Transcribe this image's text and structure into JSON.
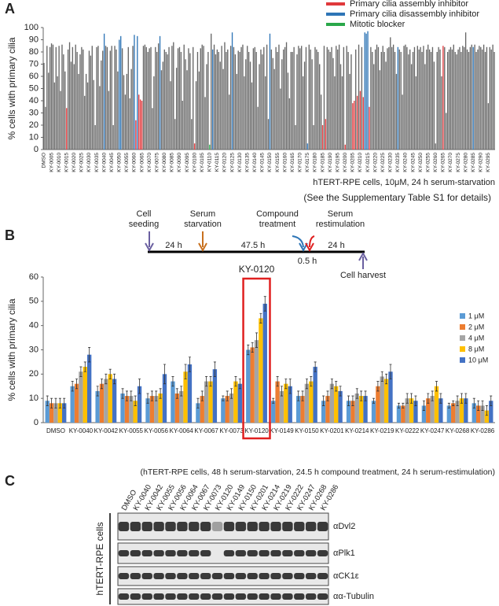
{
  "panels": {
    "a": "A",
    "b": "B",
    "c": "C"
  },
  "chart_data": [
    {
      "type": "bar",
      "ylabel": "% cells with primary cilia",
      "xlabel": "hTERT-RPE cells, 10μM, 24 h serum-starvation",
      "note": "(See the Supplementary Table S1 for details)",
      "legend": [
        {
          "name": "Primary cilia assembly inhibitor",
          "color": "#e0383b"
        },
        {
          "name": "Primary cilia disassembly inhibitor",
          "color": "#2e75b6"
        },
        {
          "name": "Mitotic blocker",
          "color": "#2aa84a"
        }
      ],
      "ylim": [
        0,
        100
      ],
      "yticks": [
        0,
        10,
        20,
        30,
        40,
        50,
        60,
        70,
        80,
        90,
        100
      ],
      "categories": [
        "DMSO",
        null,
        null,
        null,
        null,
        "KY-0005",
        null,
        null,
        null,
        null,
        "KY-0010",
        null,
        null,
        null,
        null,
        "KY-0015",
        null,
        null,
        null,
        null,
        "KY-0020",
        null,
        null,
        null,
        null,
        "KY-0025",
        null,
        null,
        null,
        null,
        "KY-0030",
        null,
        null,
        null,
        null,
        "KY-0035",
        null,
        null,
        null,
        null,
        "KY-0040",
        null,
        null,
        null,
        null,
        "KY-0045",
        null,
        null,
        null,
        null,
        "KY-0050",
        null,
        null,
        null,
        null,
        "KY-0055",
        null,
        null,
        null,
        null,
        "KY-0060",
        null,
        null,
        null,
        null,
        "KY-0065",
        null,
        null,
        null,
        null,
        "KY-0070",
        null,
        null,
        null,
        null,
        "KY-0075",
        null,
        null,
        null,
        null,
        "KY-0080",
        null,
        null,
        null,
        null,
        "KY-0085",
        null,
        null,
        null,
        null,
        "KY-0090",
        null,
        null,
        null,
        null,
        "KY-0095",
        null,
        null,
        null,
        null,
        "KY-0100",
        null,
        null,
        null,
        null,
        "KY-0105",
        null,
        null,
        null,
        null,
        "KY-0110",
        null,
        null,
        null,
        null,
        "KY-0115",
        null,
        null,
        null,
        null,
        "KY-0120",
        null,
        null,
        null,
        null,
        "KY-0125",
        null,
        null,
        null,
        null,
        "KY-0130",
        null,
        null,
        null,
        null,
        "KY-0135",
        null,
        null,
        null,
        null,
        "KY-0140",
        null,
        null,
        null,
        null,
        "KY-0145",
        null,
        null,
        null,
        null,
        "KY-0150",
        null,
        null,
        null,
        null,
        "KY-0155",
        null,
        null,
        null,
        null,
        "KY-0160",
        null,
        null,
        null,
        null,
        "KY-0165",
        null,
        null,
        null,
        null,
        "KY-0170",
        null,
        null,
        null,
        null,
        "KY-0175",
        null,
        null,
        null,
        null,
        "KY-0180",
        null,
        null,
        null,
        null,
        "KY-0185",
        null,
        null,
        null,
        null,
        "KY-0190",
        null,
        null,
        null,
        null,
        "KY-0195",
        null,
        null,
        null,
        null,
        "KY-0200",
        null,
        null,
        null,
        null,
        "KY-0205",
        null,
        null,
        null,
        null,
        "KY-0210",
        null,
        null,
        null,
        null,
        "KY-0215",
        null,
        null,
        null,
        null,
        "KY-0220",
        null,
        null,
        null,
        null,
        "KY-0225",
        null,
        null,
        null,
        null,
        "KY-0230",
        null,
        null,
        null,
        null,
        "KY-0235",
        null,
        null,
        null,
        null,
        "KY-0240",
        null,
        null,
        null,
        null,
        "KY-0245",
        null,
        null,
        null,
        null,
        "KY-0250",
        null,
        null,
        null,
        null,
        "KY-0255",
        null,
        null,
        null,
        null,
        "KY-0260",
        null,
        null,
        null,
        null,
        "KY-0265",
        null,
        null,
        null,
        null,
        "KY-0270",
        null,
        null,
        null,
        null,
        "KY-0275",
        null,
        null,
        null,
        null,
        "KY-0280",
        null,
        null,
        null,
        null,
        "KY-0285",
        null,
        null,
        null,
        null,
        "KY-0290",
        null,
        null,
        null,
        null,
        "KY-0295",
        null,
        null,
        null,
        null
      ],
      "values": [
        71,
        35,
        85,
        63,
        84,
        87,
        86,
        55,
        84,
        60,
        85,
        48,
        86,
        78,
        64,
        34,
        82,
        88,
        72,
        84,
        70,
        86,
        80,
        62,
        78,
        84,
        82,
        44,
        62,
        55,
        81,
        77,
        85,
        57,
        20,
        84,
        85,
        52,
        73,
        81,
        95,
        85,
        84,
        48,
        81,
        85,
        20,
        85,
        82,
        64,
        90,
        93,
        83,
        61,
        45,
        62,
        84,
        42,
        66,
        85,
        94,
        24,
        93,
        45,
        41,
        40,
        85,
        86,
        84,
        80,
        83,
        84,
        34,
        60,
        84,
        80,
        87,
        93,
        65,
        72,
        82,
        80,
        78,
        84,
        56,
        85,
        88,
        25,
        67,
        83,
        84,
        80,
        40,
        86,
        74,
        65,
        83,
        79,
        25,
        84,
        5,
        56,
        80,
        64,
        83,
        86,
        85,
        43,
        70,
        80,
        4,
        95,
        82,
        86,
        78,
        82,
        80,
        72,
        85,
        66,
        88,
        80,
        82,
        45,
        85,
        96,
        84,
        78,
        62,
        81,
        80,
        84,
        86,
        60,
        74,
        85,
        80,
        72,
        55,
        83,
        84,
        80,
        35,
        70,
        82,
        78,
        84,
        60,
        86,
        25,
        95,
        82,
        75,
        66,
        84,
        80,
        86,
        50,
        74,
        82,
        84,
        88,
        63,
        42,
        80,
        80,
        84,
        20,
        78,
        85,
        83,
        85,
        60,
        72,
        84,
        5,
        86,
        82,
        74,
        20,
        84,
        82,
        80,
        70,
        45,
        20,
        85,
        25,
        84,
        82,
        80,
        84,
        75,
        60,
        85,
        82,
        86,
        70,
        60,
        84,
        4,
        85,
        80,
        62,
        78,
        38,
        40,
        82,
        44,
        86,
        48,
        84,
        43,
        96,
        95,
        97,
        35,
        84,
        80,
        70,
        82,
        86,
        84,
        65,
        80,
        85,
        80,
        72,
        83,
        84,
        92,
        84,
        86,
        80,
        62,
        84,
        82,
        80,
        45,
        85,
        86,
        84,
        78,
        82,
        70,
        80,
        84,
        60,
        85,
        82,
        84,
        80,
        85,
        70,
        82,
        86,
        82,
        80,
        84,
        72,
        5,
        80,
        84,
        82,
        60,
        85,
        84,
        30,
        80,
        82,
        84,
        82,
        86,
        80,
        78,
        82,
        84,
        80,
        85,
        84,
        96,
        82,
        80,
        84,
        86,
        84,
        86,
        80,
        82,
        85,
        84,
        82,
        86,
        80,
        84,
        38,
        84,
        82,
        86,
        80
      ],
      "bar_colors": [
        "#666",
        "#666",
        "#666",
        "#666",
        "#666",
        "#666",
        "#666",
        "#666",
        "#666",
        "#666",
        "#666",
        "#666",
        "#666",
        "#666",
        "#666",
        "#e0383b",
        "#666",
        "#666",
        "#666",
        "#666",
        "#666",
        "#666",
        "#666",
        "#666",
        "#666",
        "#666",
        "#666",
        "#666",
        "#666",
        "#666",
        "#666",
        "#666",
        "#666",
        "#666",
        "#666",
        "#666",
        "#666",
        "#666",
        "#666",
        "#666",
        "#2e75b6",
        "#666",
        "#666",
        "#666",
        "#666",
        "#666",
        "#666",
        "#666",
        "#666",
        "#666",
        "#2e75b6",
        "#2e75b6",
        "#666",
        "#666",
        "#666",
        "#666",
        "#666",
        "#666",
        "#666",
        "#666",
        "#2e75b6",
        "#e0383b",
        "#2e75b6",
        "#e0383b",
        "#e0383b",
        "#e0383b",
        "#666",
        "#666",
        "#666",
        "#666",
        "#666",
        "#666",
        "#666",
        "#666",
        "#666",
        "#666",
        "#666",
        "#2e75b6",
        "#666",
        "#666",
        "#666",
        "#666",
        "#666",
        "#666",
        "#666",
        "#666",
        "#666",
        "#666",
        "#666",
        "#666",
        "#666",
        "#666",
        "#666",
        "#666",
        "#666",
        "#666",
        "#666",
        "#666",
        "#666",
        "#666",
        "#e0383b",
        "#666",
        "#666",
        "#666",
        "#666",
        "#666",
        "#666",
        "#666",
        "#666",
        "#666",
        "#2aa84a",
        "#666",
        "#2e75b6",
        "#666",
        "#666",
        "#666",
        "#666",
        "#666",
        "#666",
        "#666",
        "#666",
        "#666",
        "#666",
        "#666",
        "#666",
        "#2e75b6",
        "#666",
        "#666",
        "#666",
        "#666",
        "#666",
        "#666",
        "#666",
        "#666",
        "#666",
        "#666",
        "#666",
        "#666",
        "#666",
        "#666",
        "#666",
        "#666",
        "#666",
        "#666",
        "#666",
        "#666",
        "#666",
        "#666",
        "#666",
        "#666",
        "#2e75b6",
        "#666",
        "#666",
        "#666",
        "#666",
        "#666",
        "#666",
        "#666",
        "#666",
        "#666",
        "#666",
        "#666",
        "#666",
        "#666",
        "#666",
        "#666",
        "#666",
        "#666",
        "#666",
        "#666",
        "#666",
        "#666",
        "#666",
        "#666",
        "#666",
        "#2e75b6",
        "#666",
        "#666",
        "#666",
        "#666",
        "#666",
        "#666",
        "#666",
        "#666",
        "#666",
        "#e0383b",
        "#666",
        "#e0383b",
        "#666",
        "#666",
        "#666",
        "#666",
        "#666",
        "#666",
        "#666",
        "#666",
        "#666",
        "#666",
        "#666",
        "#666",
        "#e0383b",
        "#666",
        "#666",
        "#666",
        "#666",
        "#e0383b",
        "#e0383b",
        "#666",
        "#e0383b",
        "#666",
        "#e0383b",
        "#666",
        "#e0383b",
        "#2e75b6",
        "#2e75b6",
        "#2e75b6",
        "#e0383b",
        "#666",
        "#666",
        "#666",
        "#666",
        "#666",
        "#666",
        "#666",
        "#666",
        "#666",
        "#666",
        "#666",
        "#666",
        "#666",
        "#666",
        "#666",
        "#666",
        "#666",
        "#666",
        "#2e75b6",
        "#666",
        "#666",
        "#666",
        "#666",
        "#666",
        "#666",
        "#666",
        "#666",
        "#666",
        "#666",
        "#666",
        "#666",
        "#666",
        "#666",
        "#666",
        "#666",
        "#666",
        "#666",
        "#666",
        "#666",
        "#666",
        "#666",
        "#666",
        "#666",
        "#666",
        "#666",
        "#666",
        "#666",
        "#666",
        "#e0383b",
        "#666",
        "#666",
        "#666",
        "#666",
        "#666",
        "#666",
        "#666",
        "#666",
        "#666",
        "#666",
        "#666",
        "#666",
        "#666",
        "#666",
        "#666",
        "#666",
        "#666",
        "#666",
        "#666",
        "#2e75b6",
        "#666",
        "#666",
        "#666",
        "#666",
        "#666",
        "#666",
        "#666",
        "#666",
        "#666",
        "#666",
        "#666",
        "#666",
        "#666",
        "#666",
        "#e0383b",
        "#666",
        "#666",
        "#666",
        "#666"
      ]
    },
    {
      "type": "bar",
      "ylabel": "% cells with primary cilia",
      "footnote": "(hTERT-RPE cells, 48 h serum-starvation, 24.5 h compound treatment, 24 h serum-restimulation)",
      "annotation": "KY-0120",
      "annotation_color": "#2e75b6",
      "box_color": "#e02020",
      "ylim": [
        0,
        60
      ],
      "yticks": [
        0,
        10,
        20,
        30,
        40,
        50,
        60
      ],
      "categories": [
        "DMSO",
        "KY-0040",
        "KY-0042",
        "KY-0055",
        "KY-0056",
        "KY-0064",
        "KY-0067",
        "KY-0073",
        "KY-0120",
        "KY-0149",
        "KY-0150",
        "KY-0201",
        "KY-0214",
        "KY-0219",
        "KY-0222",
        "KY-0247",
        "KY-0268",
        "KY-0286"
      ],
      "series": [
        {
          "name": "1 μM",
          "color": "#5b9bd5",
          "values": [
            9,
            15,
            13,
            12,
            10,
            17,
            8,
            10,
            30,
            9,
            11,
            9,
            9,
            9,
            7,
            7,
            7,
            8
          ],
          "errors": [
            2,
            2,
            2,
            2,
            2,
            2,
            2,
            1,
            2,
            1,
            2,
            2,
            2,
            1,
            1,
            2,
            1,
            2
          ]
        },
        {
          "name": "2 μM",
          "color": "#ed7d31",
          "values": [
            8,
            16,
            16,
            11,
            11,
            12,
            11,
            11,
            31,
            17,
            11,
            11,
            9,
            15,
            7,
            10,
            8,
            7
          ],
          "errors": [
            2,
            2,
            2,
            2,
            2,
            2,
            2,
            2,
            2,
            2,
            2,
            2,
            2,
            2,
            1,
            2,
            1,
            2
          ]
        },
        {
          "name": "4 μM",
          "color": "#a5a5a5",
          "values": [
            8,
            21,
            18,
            11,
            11,
            13,
            17,
            12,
            34,
            13,
            16,
            16,
            12,
            19,
            10,
            11,
            9,
            7
          ],
          "errors": [
            2,
            2,
            2,
            2,
            2,
            2,
            2,
            2,
            3,
            2,
            2,
            2,
            2,
            2,
            2,
            2,
            2,
            2
          ]
        },
        {
          "name": "8 μM",
          "color": "#ffc000",
          "values": [
            8,
            23,
            20,
            9,
            12,
            21,
            17,
            17,
            43,
            16,
            17,
            15,
            11,
            18,
            10,
            15,
            10,
            5
          ],
          "errors": [
            2,
            2,
            2,
            2,
            2,
            3,
            2,
            2,
            2,
            2,
            2,
            2,
            2,
            2,
            2,
            2,
            2,
            2
          ]
        },
        {
          "name": "10 μM",
          "color": "#4472c4",
          "values": [
            8,
            28,
            18,
            15,
            20,
            24,
            22,
            16,
            49,
            15,
            23,
            13,
            11,
            21,
            9,
            10,
            10,
            9
          ],
          "errors": [
            2,
            3,
            2,
            3,
            4,
            3,
            3,
            2,
            3,
            3,
            2,
            2,
            2,
            3,
            2,
            2,
            2,
            2
          ]
        }
      ]
    }
  ],
  "timeline": {
    "events": [
      "Cell seeding",
      "Serum starvation",
      "Compound treatment",
      "Serum restimulation",
      "Cell harvest"
    ],
    "durations": [
      "24 h",
      "47.5 h",
      "0.5 h",
      "24 h"
    ]
  },
  "blot": {
    "cell_line": "hTERT-RPE cells",
    "lanes": [
      "DMSO",
      "KY-0040",
      "KY-0042",
      "KY-0055",
      "KY-0056",
      "KY-0064",
      "KY-0067",
      "KY-0073",
      "KY-0120",
      "KY-0149",
      "KY-0150",
      "KY-0201",
      "KY-0214",
      "KY-0219",
      "KY-0222",
      "KY-0247",
      "KY-0268",
      "KY-0286"
    ],
    "lane_colors": [
      "#111",
      "#111",
      "#111",
      "#111",
      "#111",
      "#111",
      "#111",
      "#111",
      "#2e75b6",
      "#111",
      "#111",
      "#111",
      "#111",
      "#111",
      "#111",
      "#111",
      "#111",
      "#111"
    ],
    "rows": [
      "αDvl2",
      "αPlk1",
      "αCK1ε",
      "αα-Tubulin"
    ]
  }
}
